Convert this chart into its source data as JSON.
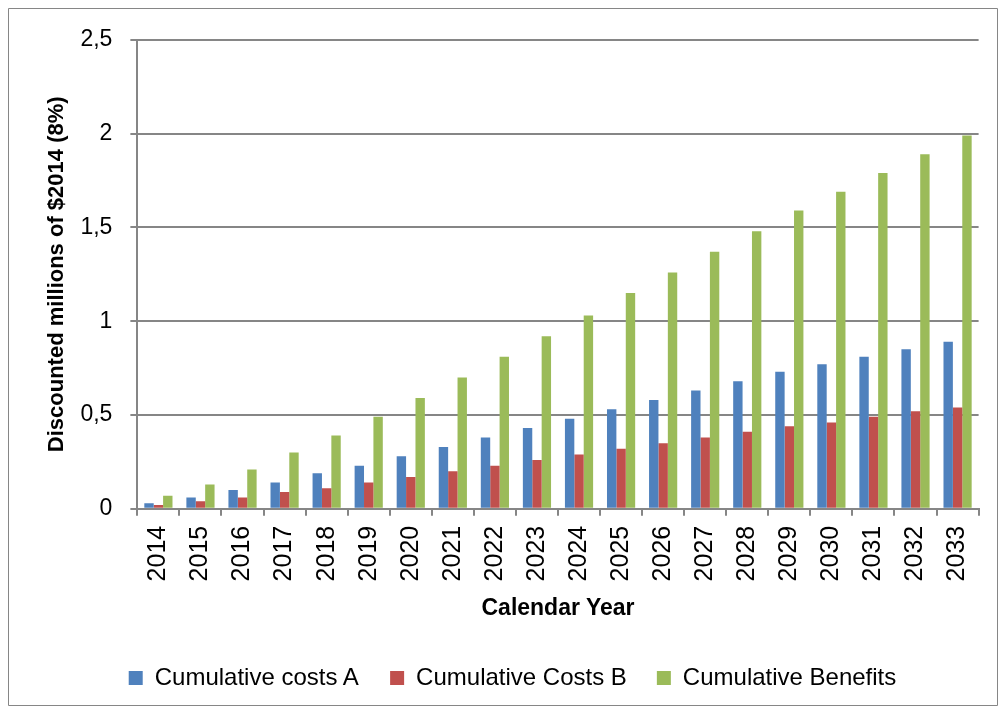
{
  "chart_data": {
    "type": "bar",
    "xlabel": "Calendar Year",
    "ylabel": "Discounted millions of $2014 (8%)",
    "categories": [
      "2014",
      "2015",
      "2016",
      "2017",
      "2018",
      "2019",
      "2020",
      "2021",
      "2022",
      "2023",
      "2024",
      "2025",
      "2026",
      "2027",
      "2028",
      "2029",
      "2030",
      "2031",
      "2032",
      "2033"
    ],
    "series": [
      {
        "name": "Cumulative costs A",
        "color": "#4f81bd",
        "values": [
          0.03,
          0.06,
          0.1,
          0.14,
          0.19,
          0.23,
          0.28,
          0.33,
          0.38,
          0.43,
          0.48,
          0.53,
          0.58,
          0.63,
          0.68,
          0.73,
          0.77,
          0.81,
          0.85,
          0.89
        ]
      },
      {
        "name": "Cumulative Costs B",
        "color": "#c0504d",
        "values": [
          0.02,
          0.04,
          0.06,
          0.09,
          0.11,
          0.14,
          0.17,
          0.2,
          0.23,
          0.26,
          0.29,
          0.32,
          0.35,
          0.38,
          0.41,
          0.44,
          0.46,
          0.49,
          0.52,
          0.54
        ]
      },
      {
        "name": "Cumulative Benefits",
        "color": "#9bbb59",
        "values": [
          0.07,
          0.13,
          0.21,
          0.3,
          0.39,
          0.49,
          0.59,
          0.7,
          0.81,
          0.92,
          1.03,
          1.15,
          1.26,
          1.37,
          1.48,
          1.59,
          1.69,
          1.79,
          1.89,
          1.99
        ]
      }
    ],
    "ylim": [
      0,
      2.5
    ],
    "yticks": [
      0,
      {
        "value": 0.5,
        "label": "0,5"
      },
      1,
      {
        "value": 1.5,
        "label": "1,5"
      },
      2,
      {
        "value": 2.5,
        "label": "2,5"
      }
    ],
    "grid": "y",
    "legend": "bottom"
  }
}
